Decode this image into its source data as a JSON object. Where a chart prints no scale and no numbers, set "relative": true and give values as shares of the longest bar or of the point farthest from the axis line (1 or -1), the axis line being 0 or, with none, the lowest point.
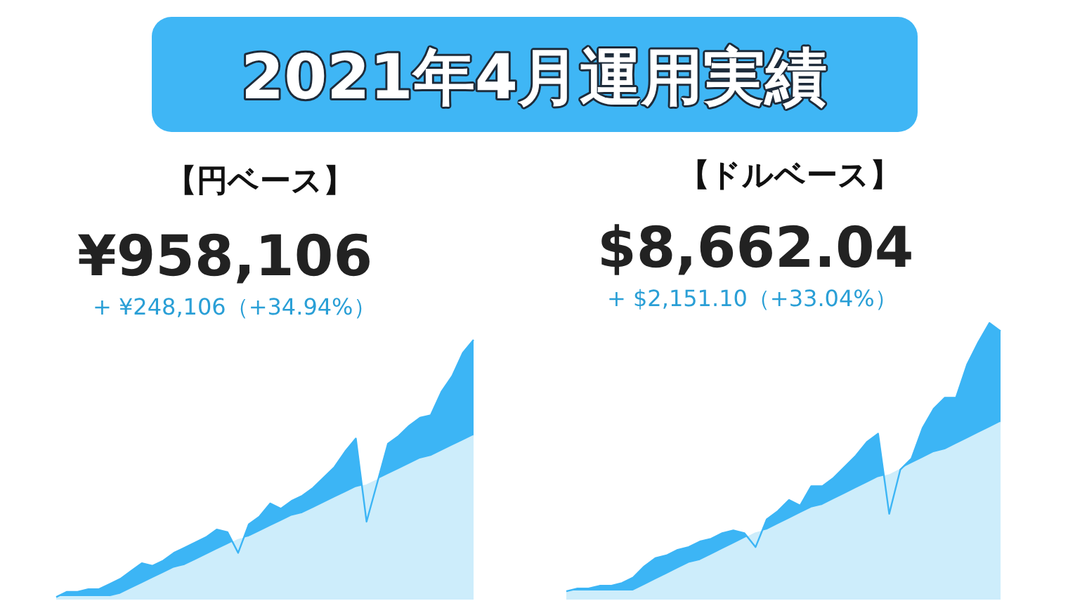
{
  "chart_data": [
    {
      "type": "other",
      "title": "2021年4月運用実績"
    },
    {
      "type": "area",
      "title": "【円ベース】",
      "subtitle": "¥958,106",
      "annotations": [
        "+ ¥248,106（+34.94%）"
      ],
      "relative": true,
      "categories": [
        null,
        null,
        null,
        null,
        null,
        null,
        null,
        null,
        null,
        null,
        null,
        null,
        null,
        null,
        null,
        null,
        null,
        null,
        null,
        null,
        null,
        null,
        null,
        null,
        null,
        null,
        null,
        null,
        null,
        null,
        null,
        null,
        null,
        null,
        null,
        null,
        null,
        null,
        null,
        null
      ],
      "series": [
        {
          "color": "#3cb5f5",
          "values": [
            0.01,
            0.03,
            0.03,
            0.04,
            0.04,
            0.06,
            0.08,
            0.11,
            0.14,
            0.13,
            0.15,
            0.18,
            0.2,
            0.22,
            0.24,
            0.27,
            0.26,
            0.18,
            0.29,
            0.32,
            0.37,
            0.35,
            0.38,
            0.4,
            0.43,
            0.47,
            0.51,
            0.57,
            0.62,
            0.3,
            0.45,
            0.6,
            0.63,
            0.67,
            0.7,
            0.71,
            0.8,
            0.86,
            0.95,
            1
          ]
        },
        {
          "color": "#cdedfb",
          "values": [
            0.01,
            0.01,
            0.01,
            0.01,
            0.01,
            0.01,
            0.02,
            0.04,
            0.06,
            0.08,
            0.1,
            0.12,
            0.13,
            0.15,
            0.17,
            0.19,
            0.21,
            0.23,
            0.24,
            0.26,
            0.28,
            0.3,
            0.32,
            0.33,
            0.35,
            0.37,
            0.39,
            0.41,
            0.43,
            0.44,
            0.46,
            0.48,
            0.5,
            0.52,
            0.54,
            0.55,
            0.57,
            0.59,
            0.61,
            0.63
          ]
        }
      ]
    },
    {
      "type": "area",
      "title": "【ドルベース】",
      "subtitle": "$8,662.04",
      "annotations": [
        "+ $2,151.10（+33.04%）"
      ],
      "relative": true,
      "categories": [
        null,
        null,
        null,
        null,
        null,
        null,
        null,
        null,
        null,
        null,
        null,
        null,
        null,
        null,
        null,
        null,
        null,
        null,
        null,
        null,
        null,
        null,
        null,
        null,
        null,
        null,
        null,
        null,
        null,
        null,
        null,
        null,
        null,
        null,
        null,
        null,
        null,
        null,
        null,
        null
      ],
      "series": [
        {
          "color": "#3cb5f5",
          "values": [
            0.03,
            0.04,
            0.04,
            0.05,
            0.05,
            0.06,
            0.08,
            0.12,
            0.15,
            0.16,
            0.18,
            0.19,
            0.21,
            0.22,
            0.24,
            0.25,
            0.24,
            0.19,
            0.29,
            0.32,
            0.36,
            0.34,
            0.41,
            0.41,
            0.44,
            0.48,
            0.52,
            0.57,
            0.6,
            0.31,
            0.47,
            0.51,
            0.62,
            0.69,
            0.73,
            0.73,
            0.85,
            0.93,
            1,
            0.97
          ]
        },
        {
          "color": "#cdedfb",
          "values": [
            0.03,
            0.03,
            0.03,
            0.03,
            0.03,
            0.03,
            0.03,
            0.05,
            0.07,
            0.09,
            0.11,
            0.13,
            0.14,
            0.16,
            0.18,
            0.2,
            0.22,
            0.24,
            0.25,
            0.27,
            0.29,
            0.31,
            0.33,
            0.34,
            0.36,
            0.38,
            0.4,
            0.42,
            0.44,
            0.45,
            0.47,
            0.49,
            0.51,
            0.53,
            0.54,
            0.56,
            0.58,
            0.6,
            0.62,
            0.64
          ]
        }
      ]
    }
  ]
}
